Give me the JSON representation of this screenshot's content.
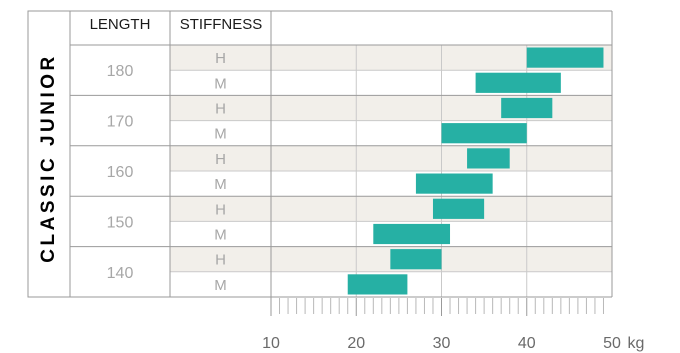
{
  "chart_data": {
    "type": "bar",
    "subtype": "floating-range",
    "title": "CLASSIC JUNIOR",
    "columns": {
      "length": "LENGTH",
      "stiffness": "STIFFNESS"
    },
    "rows": [
      {
        "length": "180",
        "stiffness": "H",
        "range": [
          40,
          49
        ]
      },
      {
        "length": "180",
        "stiffness": "M",
        "range": [
          34,
          44
        ]
      },
      {
        "length": "170",
        "stiffness": "H",
        "range": [
          37,
          43
        ]
      },
      {
        "length": "170",
        "stiffness": "M",
        "range": [
          30,
          40
        ]
      },
      {
        "length": "160",
        "stiffness": "H",
        "range": [
          33,
          38
        ]
      },
      {
        "length": "160",
        "stiffness": "M",
        "range": [
          27,
          36
        ]
      },
      {
        "length": "150",
        "stiffness": "H",
        "range": [
          29,
          35
        ]
      },
      {
        "length": "150",
        "stiffness": "M",
        "range": [
          22,
          31
        ]
      },
      {
        "length": "140",
        "stiffness": "H",
        "range": [
          24,
          30
        ]
      },
      {
        "length": "140",
        "stiffness": "M",
        "range": [
          19,
          26
        ]
      }
    ],
    "xaxis": {
      "min": 10,
      "max": 50,
      "ticks": [
        "10",
        "20",
        "30",
        "40",
        "50"
      ],
      "unit": "kg",
      "minor_step": 1
    },
    "grid": true,
    "colors": {
      "bar": "#26b0a4",
      "band": "#f2efea",
      "grid": "#c9c9c9",
      "border": "#9a9a9a",
      "label_dark": "#1a1a1a",
      "label_light": "#a7a7a7",
      "title_bar": "#000000"
    }
  }
}
